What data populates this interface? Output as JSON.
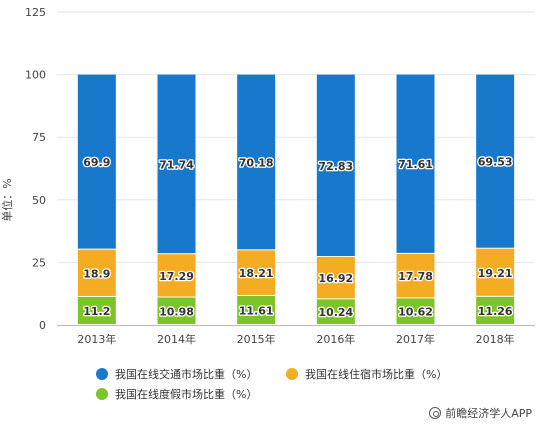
{
  "chart_data": {
    "type": "bar",
    "stacked": true,
    "categories": [
      "2013年",
      "2014年",
      "2015年",
      "2016年",
      "2017年",
      "2018年"
    ],
    "series": [
      {
        "name": "我国在线度假市场比重（%）",
        "color": "#7cc427",
        "values": [
          11.2,
          10.98,
          11.61,
          10.24,
          10.62,
          11.26
        ]
      },
      {
        "name": "我国在线住宿市场比重（%）",
        "color": "#f4ad23",
        "values": [
          18.9,
          17.29,
          18.21,
          16.92,
          17.78,
          19.21
        ]
      },
      {
        "name": "我国在线交通市场比重（%）",
        "color": "#1878cc",
        "values": [
          69.9,
          71.74,
          70.18,
          72.83,
          71.61,
          69.53
        ]
      }
    ],
    "data_labels": [
      [
        "11.2",
        "10.98",
        "11.61",
        "10.24",
        "10.62",
        "11.26"
      ],
      [
        "18.9",
        "17.29",
        "18.21",
        "16.92",
        "17.78",
        "19.21"
      ],
      [
        "69.9",
        "71.74",
        "70.18",
        "72.83",
        "71.61",
        "69.53"
      ]
    ],
    "legend_order": [
      2,
      1,
      0
    ],
    "ylabel": "单位：%",
    "ylim": [
      0,
      125
    ],
    "yticks": [
      "0",
      "25",
      "50",
      "75",
      "100",
      "125"
    ],
    "grid": true,
    "legend_position": "bottom"
  },
  "source": "前瞻经济学人APP"
}
